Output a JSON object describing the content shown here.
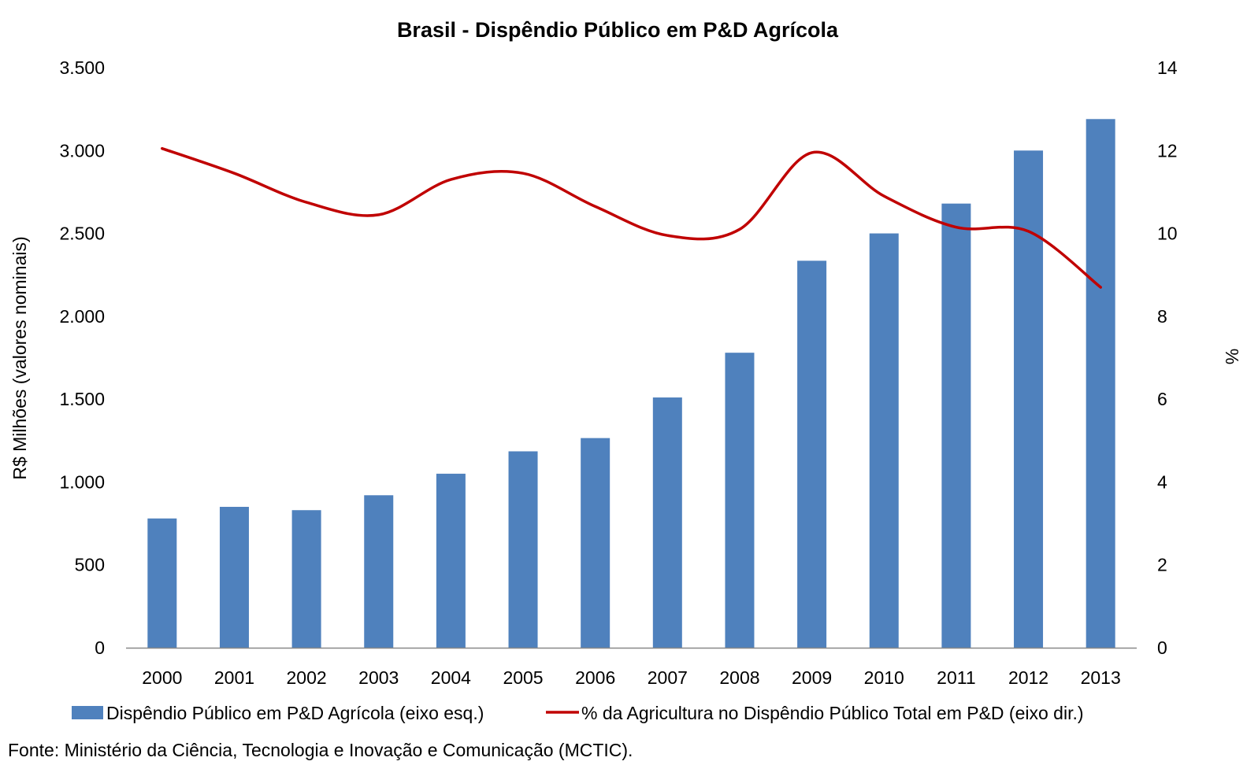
{
  "chart_data": {
    "type": "bar",
    "title": "Brasil - Dispêndio Público em P&D Agrícola",
    "categories": [
      "2000",
      "2001",
      "2002",
      "2003",
      "2004",
      "2005",
      "2006",
      "2007",
      "2008",
      "2009",
      "2010",
      "2011",
      "2012",
      "2013"
    ],
    "series": [
      {
        "name": "Dispêndio Público em P&D Agrícola (eixo esq.)",
        "type": "bar",
        "axis": "left",
        "color": "#4f81bd",
        "values": [
          780,
          850,
          830,
          920,
          1050,
          1185,
          1265,
          1510,
          1780,
          2335,
          2500,
          2680,
          3000,
          3190
        ]
      },
      {
        "name": "% da Agricultura no Dispêndio Público Total em P&D (eixo dir.)",
        "type": "line",
        "axis": "right",
        "color": "#c00000",
        "smooth": true,
        "values": [
          12.05,
          11.45,
          10.75,
          10.45,
          11.3,
          11.45,
          10.65,
          9.95,
          10.1,
          11.95,
          10.9,
          10.15,
          10.05,
          8.7
        ]
      }
    ],
    "y_left": {
      "label": "R$ Milhões (valores nominais)",
      "ylim": [
        0,
        3500
      ],
      "ticks": [
        0,
        500,
        1000,
        1500,
        2000,
        2500,
        3000,
        3500
      ],
      "tick_labels": [
        "0",
        "500",
        "1.000",
        "1.500",
        "2.000",
        "2.500",
        "3.000",
        "3.500"
      ]
    },
    "y_right": {
      "label": "%",
      "ylim": [
        0,
        14
      ],
      "ticks": [
        0,
        2,
        4,
        6,
        8,
        10,
        12,
        14
      ],
      "tick_labels": [
        "0",
        "2",
        "4",
        "6",
        "8",
        "10",
        "12",
        "14"
      ]
    },
    "grid": false,
    "legend_position": "bottom"
  },
  "source_note": "Fonte: Ministério da Ciência, Tecnologia e Inovação e Comunicação (MCTIC)."
}
